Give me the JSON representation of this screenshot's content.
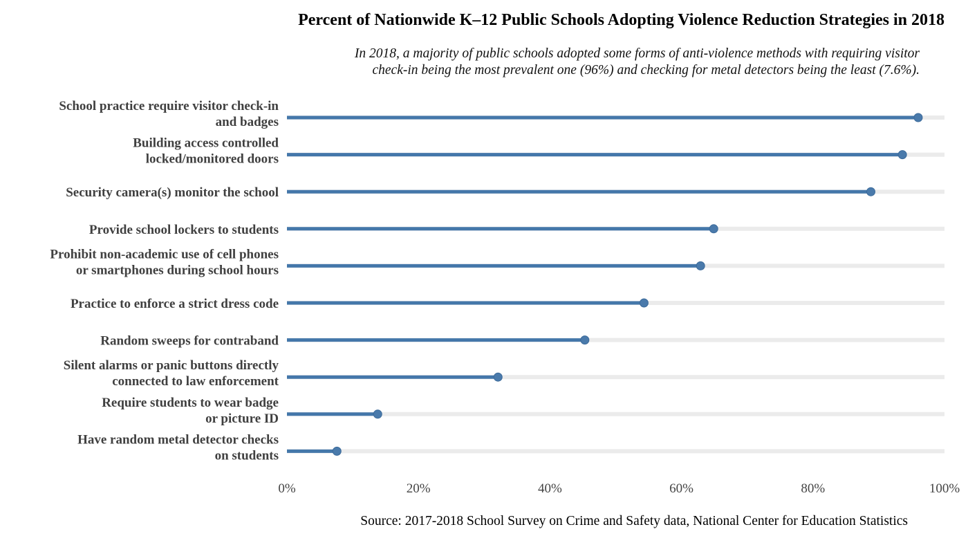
{
  "chart_data": {
    "type": "bar",
    "title": "Percent of Nationwide K–12 Public Schools Adopting Violence Reduction Strategies in 2018",
    "subtitle_lines": [
      "In 2018, a majority of public schools adopted some forms of anti-violence methods with requiring visitor",
      "check-in being the most prevalent one (96%) and checking for metal detectors being the least (7.6%)."
    ],
    "source": "Source: 2017-2018 School Survey on Crime and Safety data, National Center for Education Statistics",
    "orientation": "horizontal lollipop",
    "categories": [
      [
        "School practice require visitor check-in",
        "and badges"
      ],
      [
        "Building access controlled",
        "locked/monitored doors"
      ],
      [
        "Security camera(s) monitor the school"
      ],
      [
        "Provide school lockers to students"
      ],
      [
        "Prohibit non-academic use of cell phones",
        "or smartphones during school hours"
      ],
      [
        "Practice to enforce a strict dress code"
      ],
      [
        "Random sweeps for contraband"
      ],
      [
        "Silent alarms or panic buttons directly",
        "connected to law enforcement"
      ],
      [
        "Require students to wear badge",
        "or picture ID"
      ],
      [
        "Have random metal detector checks",
        "on students"
      ]
    ],
    "values": [
      96.0,
      93.6,
      88.8,
      64.9,
      62.9,
      54.3,
      45.3,
      32.1,
      13.8,
      7.6
    ],
    "xlim": [
      0,
      100
    ],
    "xticks": [
      0,
      20,
      40,
      60,
      80,
      100
    ],
    "xtick_labels": [
      "0%",
      "20%",
      "40%",
      "60%",
      "80%",
      "100%"
    ],
    "grid": false,
    "colors": {
      "bar": "#4477aa",
      "point": "#4a7aab",
      "track": "#ebebeb"
    }
  }
}
